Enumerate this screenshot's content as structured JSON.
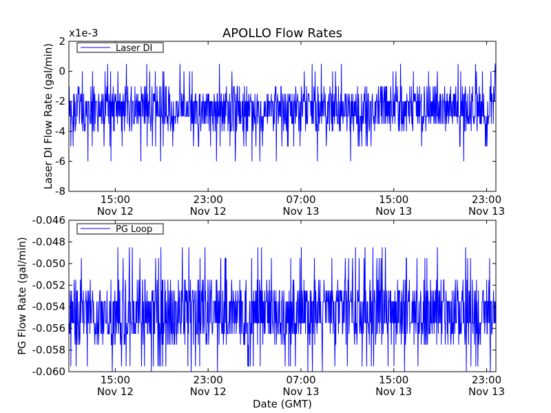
{
  "chart_data": {
    "title": "APOLLO Flow Rates",
    "xlabel": "Date (GMT)",
    "x_start_hours": 11,
    "x_end_hours": 47.8,
    "x_ticks": [
      {
        "hours": 15,
        "time": "15:00",
        "date": "Nov 12"
      },
      {
        "hours": 23,
        "time": "23:00",
        "date": "Nov 12"
      },
      {
        "hours": 31,
        "time": "07:00",
        "date": "Nov 13"
      },
      {
        "hours": 39,
        "time": "15:00",
        "date": "Nov 13"
      },
      {
        "hours": 47,
        "time": "23:00",
        "date": "Nov 13"
      }
    ],
    "panels": [
      {
        "type": "line",
        "series_name": "Laser DI",
        "ylabel": "Laser DI Flow Rate (gal/min)",
        "offset_label": "x1e-3",
        "ylim": [
          -8,
          2
        ],
        "yticks": [
          -8,
          -6,
          -4,
          -2,
          0,
          2
        ],
        "ytick_labels": [
          "-8",
          "-6",
          "-4",
          "-2",
          "0",
          "2"
        ],
        "baseline": -2.5,
        "step": 0.5,
        "min": -8,
        "max": 2,
        "color": "#0000ff"
      },
      {
        "type": "line",
        "series_name": "PG Loop",
        "ylabel": "PG Flow Rate (gal/min)",
        "offset_label": "",
        "ylim": [
          -0.06,
          -0.046
        ],
        "yticks": [
          -0.06,
          -0.058,
          -0.056,
          -0.054,
          -0.052,
          -0.05,
          -0.048,
          -0.046
        ],
        "ytick_labels": [
          "-0.060",
          "-0.058",
          "-0.056",
          "-0.054",
          "-0.052",
          "-0.050",
          "-0.048",
          "-0.046"
        ],
        "baseline": -0.0545,
        "step": 0.001,
        "min": -0.06,
        "max": -0.0472,
        "color": "#0000ff"
      }
    ]
  }
}
